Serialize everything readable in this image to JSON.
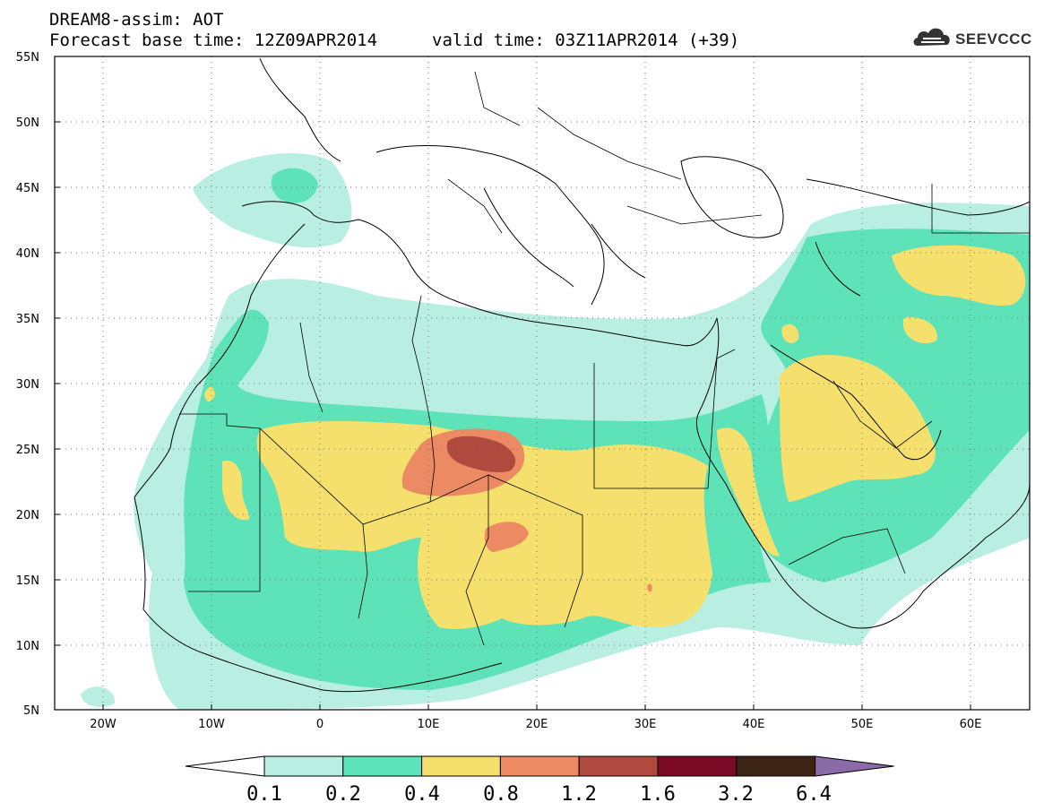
{
  "header": {
    "title": "DREAM8-assim: AOT",
    "base_time": "Forecast base time: 12Z09APR2014",
    "valid_time": "valid time: 03Z11APR2014 (+39)"
  },
  "logo": {
    "text": "SEEVCCC",
    "icon": "cloud-logo-icon"
  },
  "map": {
    "lat_labels": [
      "55N",
      "50N",
      "45N",
      "40N",
      "35N",
      "30N",
      "25N",
      "20N",
      "15N",
      "10N",
      "5N"
    ],
    "lon_labels": [
      "20W",
      "10W",
      "0",
      "10E",
      "20E",
      "30E",
      "40E",
      "50E",
      "60E"
    ],
    "grid": "dotted"
  },
  "colorbar": {
    "labels": [
      "0.1",
      "0.2",
      "0.4",
      "0.8",
      "1.2",
      "1.6",
      "3.2",
      "6.4"
    ],
    "colors": [
      "#ffffff",
      "#b9eee3",
      "#5ee3b8",
      "#f5e06d",
      "#ec8a64",
      "#b04a3f",
      "#7a0a25",
      "#3c2414",
      "#8b6aa8"
    ]
  }
}
